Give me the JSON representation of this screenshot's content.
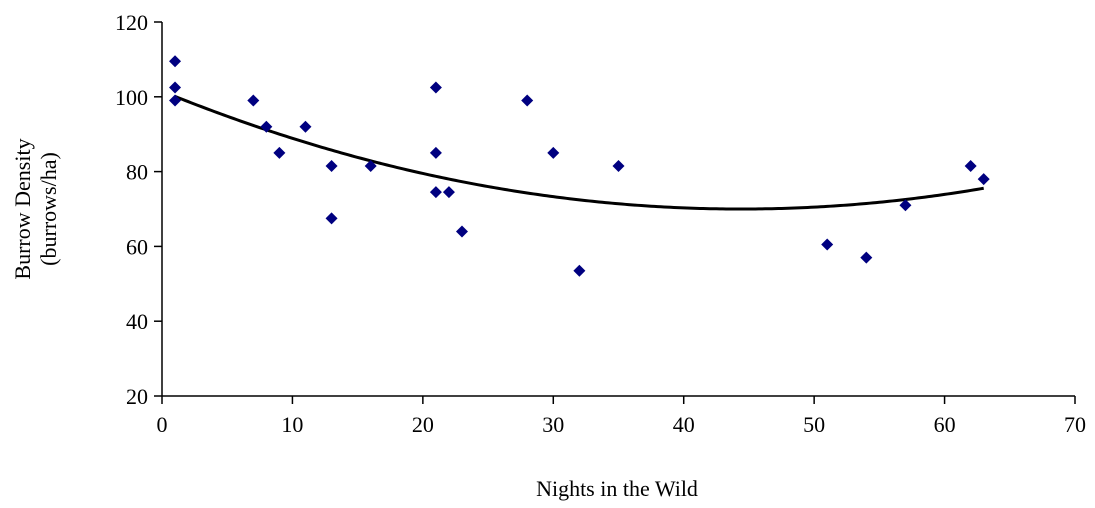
{
  "chart_data": {
    "type": "scatter",
    "xlabel": "Nights in the Wild",
    "ylabel": [
      "Burrow Density",
      "(burrows/ha)"
    ],
    "xlim": [
      0,
      70
    ],
    "ylim": [
      20,
      120
    ],
    "xticks": [
      0,
      10,
      20,
      30,
      40,
      50,
      60,
      70
    ],
    "yticks": [
      20,
      40,
      60,
      80,
      100,
      120
    ],
    "grid": false,
    "legend": "none",
    "series": [
      {
        "kind": "points",
        "color": "#000080",
        "marker": "diamond",
        "points": [
          {
            "x": 1,
            "y": 109.5
          },
          {
            "x": 1,
            "y": 102.5
          },
          {
            "x": 1,
            "y": 99
          },
          {
            "x": 7,
            "y": 99
          },
          {
            "x": 8,
            "y": 92
          },
          {
            "x": 9,
            "y": 85
          },
          {
            "x": 11,
            "y": 92
          },
          {
            "x": 13,
            "y": 81.5
          },
          {
            "x": 13,
            "y": 67.5
          },
          {
            "x": 16,
            "y": 81.5
          },
          {
            "x": 21,
            "y": 102.5
          },
          {
            "x": 21,
            "y": 85
          },
          {
            "x": 21,
            "y": 74.5
          },
          {
            "x": 22,
            "y": 74.5
          },
          {
            "x": 23,
            "y": 64
          },
          {
            "x": 28,
            "y": 99
          },
          {
            "x": 30,
            "y": 85
          },
          {
            "x": 32,
            "y": 53.5
          },
          {
            "x": 35,
            "y": 81.5
          },
          {
            "x": 51,
            "y": 60.5
          },
          {
            "x": 54,
            "y": 57
          },
          {
            "x": 57,
            "y": 71
          },
          {
            "x": 62,
            "y": 81.5
          },
          {
            "x": 63,
            "y": 78
          }
        ]
      },
      {
        "kind": "trendline",
        "fit": "polynomial-2",
        "color": "#000000",
        "x_range": [
          1,
          63
        ],
        "coefficients": {
          "a": 0.016,
          "b": -1.42,
          "c": 101.5
        }
      }
    ]
  }
}
